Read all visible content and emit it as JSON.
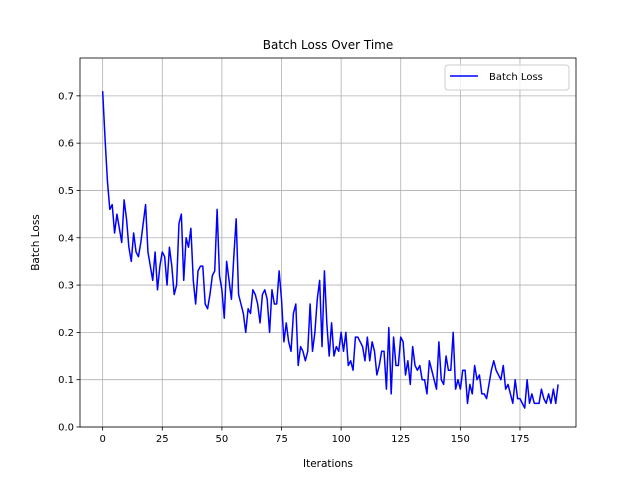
{
  "chart_data": {
    "type": "line",
    "title": "Batch Loss Over Time",
    "xlabel": "Iterations",
    "ylabel": "Batch Loss",
    "xlim": [
      -9.5,
      198.5
    ],
    "ylim": [
      0.0,
      0.78
    ],
    "xticks": [
      0,
      25,
      50,
      75,
      100,
      125,
      150,
      175
    ],
    "yticks": [
      0.0,
      0.1,
      0.2,
      0.3,
      0.4,
      0.5,
      0.6,
      0.7
    ],
    "grid": true,
    "legend_position": "top-right",
    "series": [
      {
        "name": "Batch Loss",
        "color": "#0000ff",
        "x_start": 0,
        "x_step": 1,
        "values": [
          0.71,
          0.61,
          0.52,
          0.46,
          0.47,
          0.41,
          0.45,
          0.42,
          0.39,
          0.48,
          0.44,
          0.38,
          0.35,
          0.41,
          0.37,
          0.36,
          0.39,
          0.43,
          0.47,
          0.37,
          0.34,
          0.31,
          0.37,
          0.29,
          0.34,
          0.37,
          0.36,
          0.3,
          0.38,
          0.34,
          0.28,
          0.3,
          0.43,
          0.45,
          0.31,
          0.4,
          0.38,
          0.42,
          0.31,
          0.26,
          0.33,
          0.34,
          0.34,
          0.26,
          0.25,
          0.28,
          0.32,
          0.33,
          0.46,
          0.32,
          0.29,
          0.23,
          0.35,
          0.31,
          0.27,
          0.36,
          0.44,
          0.28,
          0.26,
          0.24,
          0.2,
          0.25,
          0.24,
          0.29,
          0.28,
          0.26,
          0.22,
          0.28,
          0.29,
          0.27,
          0.2,
          0.29,
          0.26,
          0.26,
          0.33,
          0.27,
          0.18,
          0.22,
          0.18,
          0.16,
          0.24,
          0.26,
          0.13,
          0.17,
          0.16,
          0.14,
          0.16,
          0.26,
          0.16,
          0.2,
          0.27,
          0.31,
          0.17,
          0.33,
          0.22,
          0.15,
          0.22,
          0.15,
          0.17,
          0.16,
          0.2,
          0.16,
          0.2,
          0.13,
          0.14,
          0.12,
          0.19,
          0.19,
          0.18,
          0.17,
          0.14,
          0.19,
          0.14,
          0.18,
          0.16,
          0.11,
          0.13,
          0.16,
          0.16,
          0.08,
          0.21,
          0.07,
          0.19,
          0.13,
          0.13,
          0.19,
          0.18,
          0.11,
          0.14,
          0.09,
          0.17,
          0.13,
          0.12,
          0.13,
          0.1,
          0.1,
          0.07,
          0.14,
          0.12,
          0.1,
          0.08,
          0.18,
          0.1,
          0.09,
          0.15,
          0.12,
          0.12,
          0.2,
          0.08,
          0.1,
          0.08,
          0.12,
          0.12,
          0.05,
          0.09,
          0.07,
          0.13,
          0.1,
          0.11,
          0.07,
          0.07,
          0.06,
          0.09,
          0.12,
          0.14,
          0.12,
          0.11,
          0.1,
          0.13,
          0.08,
          0.09,
          0.07,
          0.05,
          0.1,
          0.06,
          0.06,
          0.05,
          0.04,
          0.1,
          0.05,
          0.07,
          0.05,
          0.05,
          0.05,
          0.08,
          0.06,
          0.05,
          0.07,
          0.05,
          0.08,
          0.05,
          0.09
        ]
      }
    ]
  }
}
